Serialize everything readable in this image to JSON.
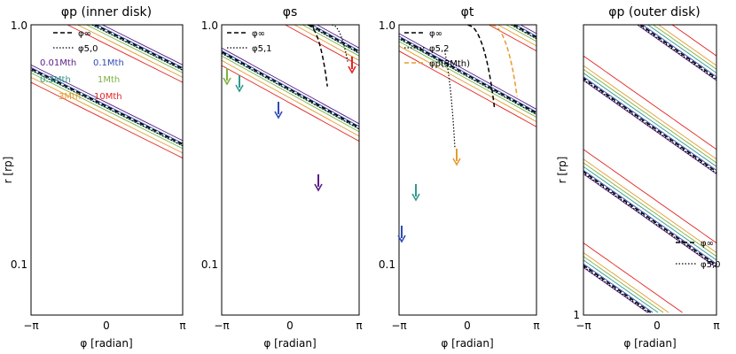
{
  "colors": {
    "m001": "#5b1c87",
    "m01": "#2f4bb5",
    "m03": "#2f9a8c",
    "m1": "#7cb342",
    "m3": "#e59b2e",
    "m10": "#e3231f",
    "dashed": "#000000",
    "dotted": "#000000"
  },
  "chart_data": [
    {
      "type": "line",
      "title": "φp (inner disk)",
      "xlabel": "φ [radian]",
      "ylabel": "r [rp]",
      "xlim": [
        -3.1416,
        3.1416
      ],
      "ylim": [
        0.06,
        1.0
      ],
      "yscale": "log",
      "x_ticks": [
        "−π",
        "0",
        "π"
      ],
      "y_ticks": [
        "0.1",
        "1.0"
      ],
      "legend": [
        {
          "label": "φ∞",
          "style": "dashed"
        },
        {
          "label": "φ5,0",
          "style": "dotted"
        }
      ],
      "mass_legend": [
        {
          "label": "0.01Mth",
          "color_key": "m001"
        },
        {
          "label": "0.1Mth",
          "color_key": "m01"
        },
        {
          "label": "0.3Mth",
          "color_key": "m03"
        },
        {
          "label": "1Mth",
          "color_key": "m1"
        },
        {
          "label": "3Mth",
          "color_key": "m3"
        },
        {
          "label": "10Mth",
          "color_key": "m10"
        }
      ]
    },
    {
      "type": "line",
      "title": "φs",
      "xlabel": "φ [radian]",
      "xlim": [
        -3.1416,
        3.1416
      ],
      "ylim": [
        0.06,
        1.0
      ],
      "yscale": "log",
      "x_ticks": [
        "−π",
        "0",
        "π"
      ],
      "y_ticks": [
        "0.1",
        "1.0"
      ],
      "legend": [
        {
          "label": "φ∞",
          "style": "dashed"
        },
        {
          "label": "φ5,1",
          "style": "dotted"
        }
      ],
      "annotations": [
        "arrows mark shock positions for each planet mass"
      ]
    },
    {
      "type": "line",
      "title": "φt",
      "xlabel": "φ [radian]",
      "xlim": [
        -3.1416,
        3.1416
      ],
      "ylim": [
        0.06,
        1.0
      ],
      "yscale": "log",
      "x_ticks": [
        "−π",
        "0",
        "π"
      ],
      "y_ticks": [
        "0.1",
        "1.0"
      ],
      "legend": [
        {
          "label": "φ∞",
          "style": "dashed"
        },
        {
          "label": "φ5,2",
          "style": "dotted"
        },
        {
          "label": "φp(3Mth)",
          "style": "dashed-orange"
        }
      ]
    },
    {
      "type": "line",
      "title": "φp (outer disk)",
      "xlabel": "φ [radian]",
      "ylabel": "r [rp]",
      "xlim": [
        -3.1416,
        3.1416
      ],
      "ylim": [
        1,
        10
      ],
      "yscale": "log",
      "x_ticks": [
        "−π",
        "0",
        "π"
      ],
      "y_ticks": [
        "1"
      ],
      "legend": [
        {
          "label": "φ∞",
          "style": "dashed"
        },
        {
          "label": "φ5,0",
          "style": "dotted"
        }
      ]
    }
  ]
}
